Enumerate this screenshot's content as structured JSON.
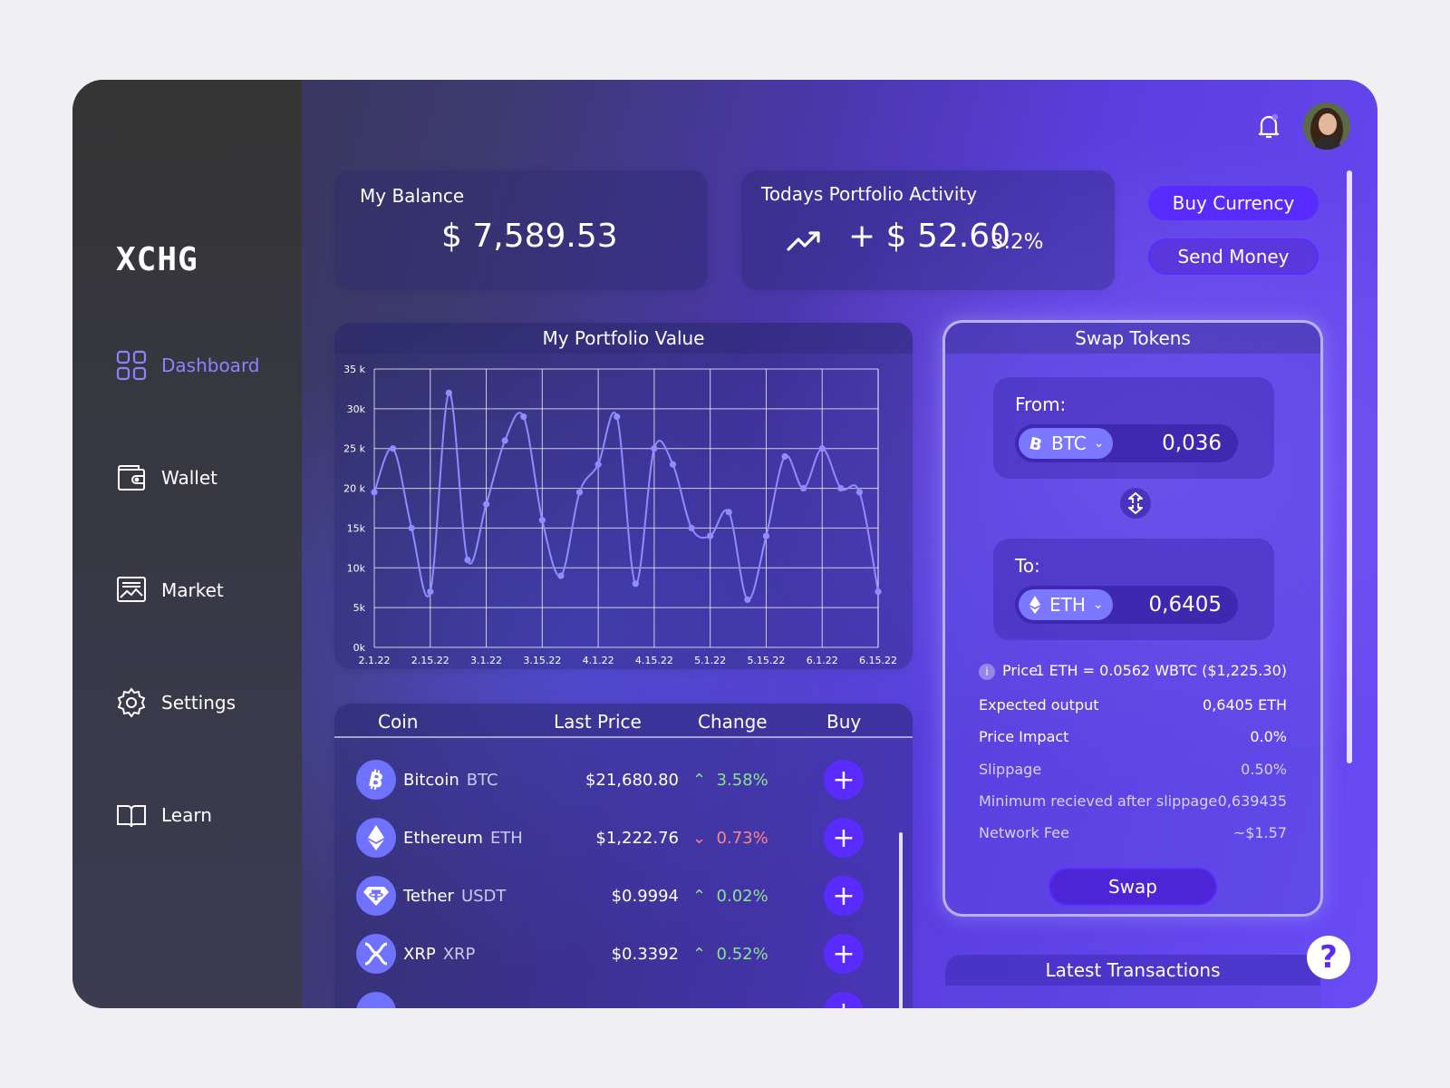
{
  "sidebar": {
    "logo": "XCHG",
    "items": [
      {
        "label": "Dashboard",
        "icon": "dashboard-grid-icon",
        "active": true
      },
      {
        "label": "Wallet",
        "icon": "wallet-icon"
      },
      {
        "label": "Market",
        "icon": "market-chart-icon"
      },
      {
        "label": "Settings",
        "icon": "gear-icon"
      },
      {
        "label": "Learn",
        "icon": "book-icon"
      }
    ]
  },
  "balance": {
    "title": "My Balance",
    "value": "$ 7,589.53"
  },
  "activity": {
    "title": "Todays Portfolio Activity",
    "value": "+ $ 52.60",
    "percent": "3.2%",
    "icon": "trending-up-icon"
  },
  "actions": {
    "buy_label": "Buy Currency",
    "send_label": "Send Money"
  },
  "chart_data": {
    "type": "line",
    "title": "My Portfolio Value",
    "xlabel": "",
    "ylabel": "",
    "x_ticks": [
      "2.1.22",
      "2.15.22",
      "3.1.22",
      "3.15.22",
      "4.1.22",
      "4.15.22",
      "5.1.22",
      "5.15.22",
      "6.1.22",
      "6.15.22"
    ],
    "y_ticks": [
      "0k",
      "5k",
      "10k",
      "15k",
      "20 k",
      "25 k",
      "30k",
      "35 k"
    ],
    "ylim": [
      0,
      35000
    ],
    "grid": true,
    "values": [
      19500,
      25000,
      15000,
      7000,
      32000,
      11000,
      18000,
      26000,
      29000,
      16000,
      9000,
      19500,
      23000,
      29000,
      8000,
      25000,
      23000,
      15000,
      14000,
      17000,
      6000,
      14000,
      24000,
      20000,
      25000,
      20000,
      19500,
      7000
    ],
    "line_color": "#8f8cff"
  },
  "coins": {
    "headers": {
      "coin": "Coin",
      "price": "Last Price",
      "change": "Change",
      "buy": "Buy"
    },
    "rows": [
      {
        "name": "Bitcoin",
        "symbol": "BTC",
        "price": "$21,680.80",
        "change": "3.58%",
        "direction": "up",
        "icon": "bitcoin-icon"
      },
      {
        "name": "Ethereum",
        "symbol": "ETH",
        "price": "$1,222.76",
        "change": "0.73%",
        "direction": "down",
        "icon": "ethereum-icon"
      },
      {
        "name": "Tether",
        "symbol": "USDT",
        "price": "$0.9994",
        "change": "0.02%",
        "direction": "up",
        "icon": "tether-icon"
      },
      {
        "name": "XRP",
        "symbol": "XRP",
        "price": "$0.3392",
        "change": "0.52%",
        "direction": "up",
        "icon": "xrp-icon"
      }
    ]
  },
  "swap": {
    "title": "Swap Tokens",
    "from_label": "From:",
    "from_token": "BTC",
    "from_amount": "0,036",
    "to_label": "To:",
    "to_token": "ETH",
    "to_amount": "0,6405",
    "details": [
      {
        "key": "Price",
        "value": "1 ETH = 0.0562 WBTC ($1,225.30)",
        "dim": false
      },
      {
        "key": "Expected output",
        "value": "0,6405 ETH",
        "dim": false
      },
      {
        "key": "Price Impact",
        "value": "0.0%",
        "dim": false
      },
      {
        "key": "Slippage",
        "value": "0.50%",
        "dim": true
      },
      {
        "key": "Minimum recieved after slippage",
        "value": "0,639435",
        "dim": true
      },
      {
        "key": "Network Fee",
        "value": "~$1.57",
        "dim": true
      }
    ],
    "swap_label": "Swap"
  },
  "transactions": {
    "title": "Latest Transactions"
  },
  "help_label": "?",
  "colors": {
    "accent": "#5a2bff",
    "up": "#8ee28e",
    "down": "#ff8585",
    "active_nav": "#8b83ff"
  }
}
